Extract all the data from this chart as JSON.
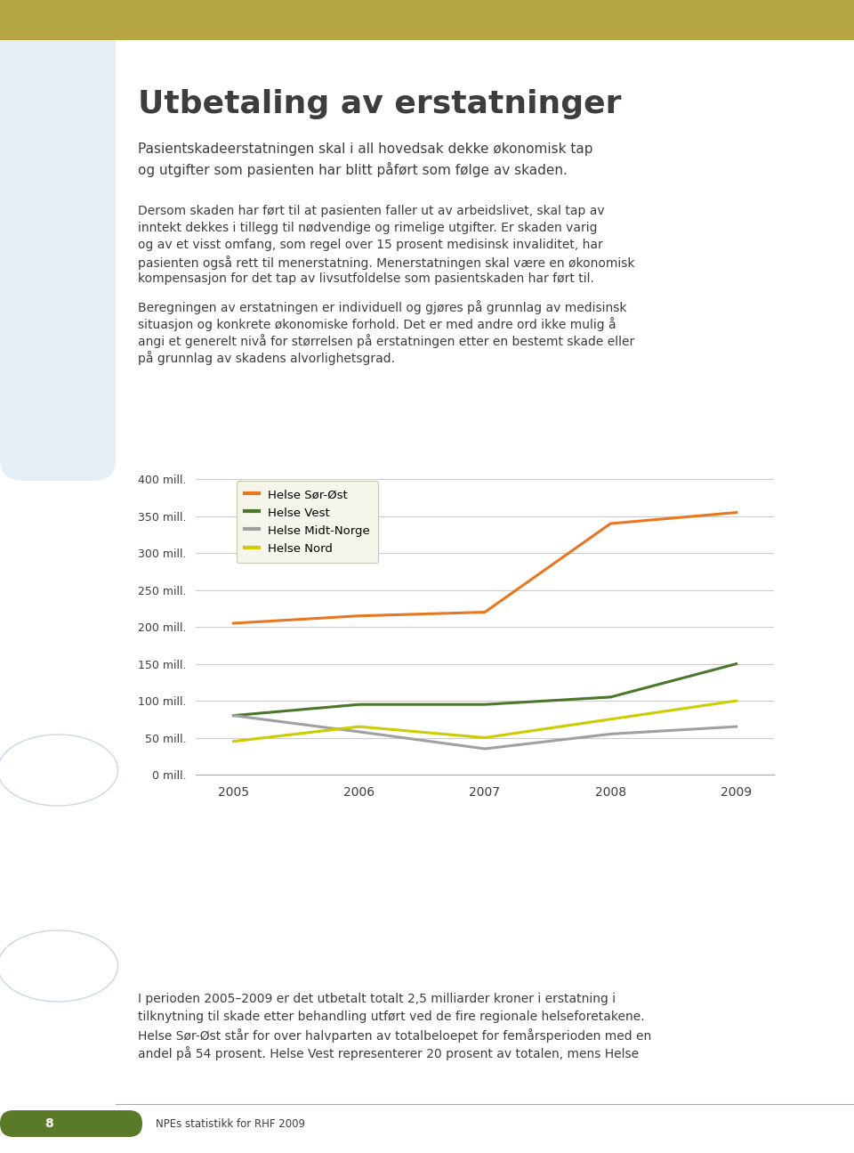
{
  "title": "Utbetaling av erstatninger",
  "subtitle1": "Pasientskadeerstatningen skal i all hovedsak dekke økonomisk tap",
  "subtitle2": "og utgifter som pasienten har blitt påført som følge av skaden.",
  "body1_lines": [
    "Dersom skaden har ført til at pasienten faller ut av arbeidslivet, skal tap av",
    "inntekt dekkes i tillegg til nødvendige og rimelige utgifter. Er skaden varig",
    "og av et visst omfang, som regel over 15 prosent medisinsk invaliditet, har",
    "pasienten også rett til menerstatning. Menerstatningen skal være en økonomisk",
    "kompensasjon for det tap av livsutfoldelse som pasientskaden har ført til."
  ],
  "body2_lines": [
    "Beregningen av erstatningen er individuell og gjøres på grunnlag av medisinsk",
    "situasjon og konkrete økonomiske forhold. Det er med andre ord ikke mulig å",
    "angi et generelt nivå for størrelsen på erstatningen etter en bestemt skade eller",
    "på grunnlag av skadens alvorlighetsgrad."
  ],
  "footer_lines": [
    "I perioden 2005–2009 er det utbetalt totalt 2,5 milliarder kroner i erstatning i",
    "tilknytning til skade etter behandling utført ved de fire regionale helseforetakene.",
    "Helse Sør-Øst står for over halvparten av totalbeloepet for femårsperioden med en",
    "andel på 54 prosent. Helse Vest representerer 20 prosent av totalen, mens Helse"
  ],
  "page_label": "NPEs statistikk for RHF 2009",
  "page_number": "8",
  "years": [
    2005,
    2006,
    2007,
    2008,
    2009
  ],
  "helse_sor_ost": [
    205,
    215,
    220,
    340,
    355
  ],
  "helse_vest": [
    80,
    95,
    95,
    105,
    150
  ],
  "helse_midt": [
    80,
    58,
    35,
    55,
    65
  ],
  "helse_nord": [
    45,
    65,
    50,
    75,
    100
  ],
  "color_sor_ost": "#E87722",
  "color_vest": "#4A7729",
  "color_midt": "#A0A0A0",
  "color_nord": "#CCCC00",
  "ylim": [
    0,
    410
  ],
  "yticks": [
    0,
    50,
    100,
    150,
    200,
    250,
    300,
    350,
    400
  ],
  "ytick_labels": [
    "0 mill.",
    "50 mill.",
    "100 mill.",
    "150 mill.",
    "200 mill.",
    "250 mill.",
    "300 mill.",
    "350 mill.",
    "400 mill."
  ],
  "sidebar_color": "#E4EEF5",
  "topbar_color": "#B5A642",
  "text_color": "#3D3D3D",
  "grid_color": "#CCCCCC",
  "legend_face_color": "#F5F5EB",
  "legend_edge_color": "#C8C8AA",
  "footer_bar_color": "#5A7A2A",
  "linewidth": 2.2
}
